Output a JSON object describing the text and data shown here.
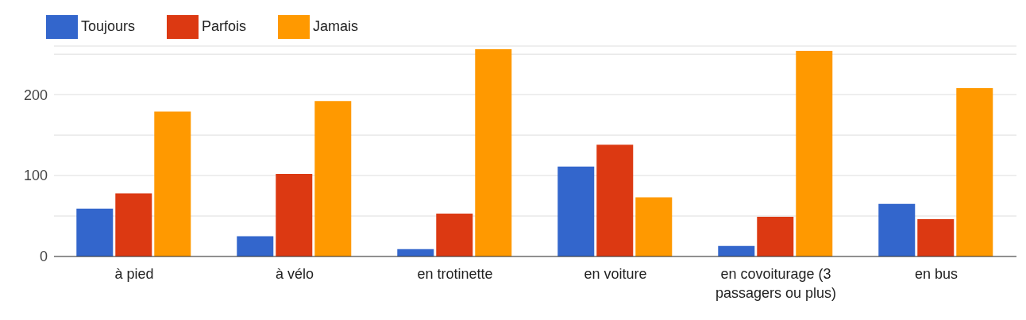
{
  "chart_data": {
    "type": "bar",
    "categories": [
      "à pied",
      "à vélo",
      "en trotinette",
      "en voiture",
      "en covoiturage (3 passagers ou plus)",
      "en bus"
    ],
    "series": [
      {
        "name": "Toujours",
        "color": "#3366cc",
        "values": [
          59,
          25,
          9,
          111,
          13,
          65
        ]
      },
      {
        "name": "Parfois",
        "color": "#dc3912",
        "values": [
          78,
          102,
          53,
          138,
          49,
          46
        ]
      },
      {
        "name": "Jamais",
        "color": "#ff9900",
        "values": [
          179,
          192,
          256,
          73,
          254,
          208
        ]
      }
    ],
    "ylim": [
      0,
      260
    ],
    "yticks": [
      0,
      {
        "value": 50,
        "label": null
      },
      100,
      {
        "value": 150,
        "label": null
      },
      200,
      {
        "value": 250,
        "label": null
      }
    ],
    "grid": "y",
    "legend": "top left"
  }
}
